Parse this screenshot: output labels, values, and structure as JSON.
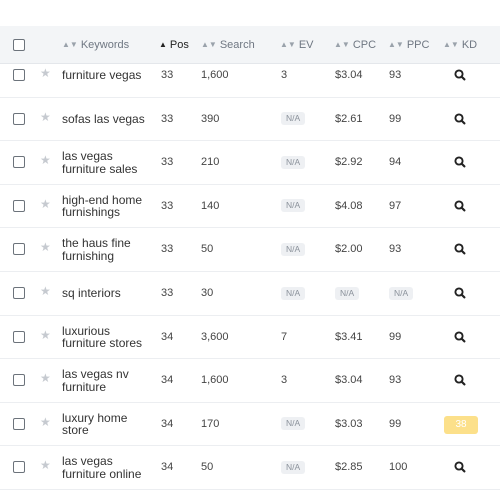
{
  "header": {
    "keywords": "Keywords",
    "pos": "Pos",
    "search": "Search",
    "ev": "EV",
    "cpc": "CPC",
    "ppc": "PPC",
    "kd": "KD",
    "sort_icon": "sort-arrows-icon",
    "active_sort": "pos"
  },
  "rows": [
    {
      "keyword": "furniture vegas",
      "pos": "33",
      "search": "1,600",
      "ev": "3",
      "cpc": "$3.04",
      "ppc": "93",
      "kd": null
    },
    {
      "keyword": "sofas las vegas",
      "pos": "33",
      "search": "390",
      "ev": "N/A",
      "cpc": "$2.61",
      "ppc": "99",
      "kd": null
    },
    {
      "keyword": "las vegas furniture sales",
      "pos": "33",
      "search": "210",
      "ev": "N/A",
      "cpc": "$2.92",
      "ppc": "94",
      "kd": null
    },
    {
      "keyword": "high-end home furnishings",
      "pos": "33",
      "search": "140",
      "ev": "N/A",
      "cpc": "$4.08",
      "ppc": "97",
      "kd": null
    },
    {
      "keyword": "the haus fine furnishing",
      "pos": "33",
      "search": "50",
      "ev": "N/A",
      "cpc": "$2.00",
      "ppc": "93",
      "kd": null
    },
    {
      "keyword": "sq interiors",
      "pos": "33",
      "search": "30",
      "ev": "N/A",
      "cpc": "N/A",
      "ppc": "N/A",
      "kd": null
    },
    {
      "keyword": "luxurious furniture stores",
      "pos": "34",
      "search": "3,600",
      "ev": "7",
      "cpc": "$3.41",
      "ppc": "99",
      "kd": null
    },
    {
      "keyword": "las vegas nv furniture",
      "pos": "34",
      "search": "1,600",
      "ev": "3",
      "cpc": "$3.04",
      "ppc": "93",
      "kd": null
    },
    {
      "keyword": "luxury home store",
      "pos": "34",
      "search": "170",
      "ev": "N/A",
      "cpc": "$3.03",
      "ppc": "99",
      "kd": "38"
    },
    {
      "keyword": "las vegas furniture online",
      "pos": "34",
      "search": "50",
      "ev": "N/A",
      "cpc": "$2.85",
      "ppc": "100",
      "kd": null
    }
  ],
  "icons": {
    "checkbox": "checkbox-icon",
    "star": "star-icon",
    "kd_lookup": "search-icon"
  },
  "colors": {
    "header_bg": "#f3f5f7",
    "kd_badge": "#fce08a",
    "na_pill": "#eef0f3"
  }
}
